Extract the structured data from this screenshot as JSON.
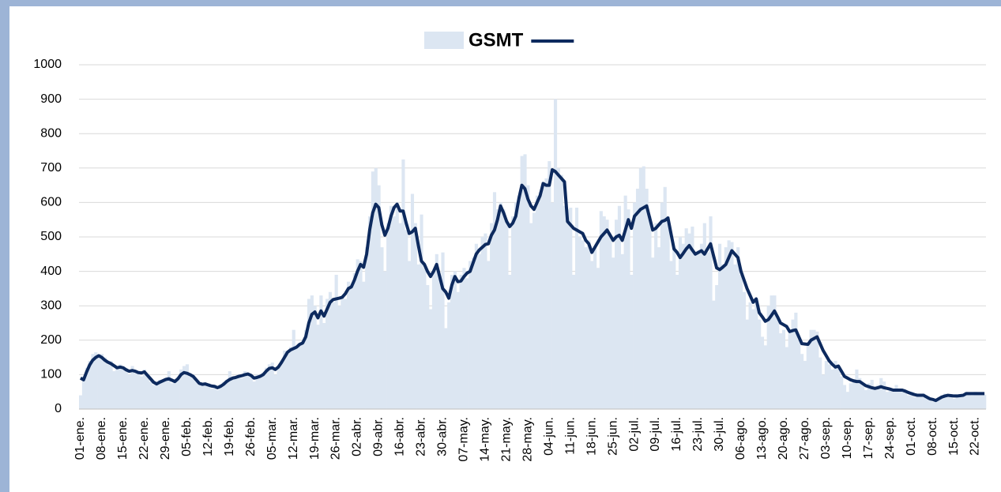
{
  "chart_data": {
    "type": "bar-line",
    "categories": [
      "01-ene.",
      null,
      null,
      null,
      null,
      null,
      null,
      "08-ene.",
      null,
      null,
      null,
      null,
      null,
      null,
      "15-ene.",
      null,
      null,
      null,
      null,
      null,
      null,
      "22-ene.",
      null,
      null,
      null,
      null,
      null,
      null,
      "29-ene.",
      null,
      null,
      null,
      null,
      null,
      null,
      "05-feb.",
      null,
      null,
      null,
      null,
      null,
      null,
      "12-feb.",
      null,
      null,
      null,
      null,
      null,
      null,
      "19-feb.",
      null,
      null,
      null,
      null,
      null,
      null,
      "26-feb.",
      null,
      null,
      null,
      null,
      null,
      null,
      "05-mar.",
      null,
      null,
      null,
      null,
      null,
      null,
      "12-mar.",
      null,
      null,
      null,
      null,
      null,
      null,
      "19-mar.",
      null,
      null,
      null,
      null,
      null,
      null,
      "26-mar.",
      null,
      null,
      null,
      null,
      null,
      null,
      "02-abr.",
      null,
      null,
      null,
      null,
      null,
      null,
      "09-abr.",
      null,
      null,
      null,
      null,
      null,
      null,
      "16-abr.",
      null,
      null,
      null,
      null,
      null,
      null,
      "23-abr.",
      null,
      null,
      null,
      null,
      null,
      null,
      "30-abr.",
      null,
      null,
      null,
      null,
      null,
      null,
      "07-may.",
      null,
      null,
      null,
      null,
      null,
      null,
      "14-may.",
      null,
      null,
      null,
      null,
      null,
      null,
      "21-may.",
      null,
      null,
      null,
      null,
      null,
      null,
      "28-may.",
      null,
      null,
      null,
      null,
      null,
      null,
      "04-jun.",
      null,
      null,
      null,
      null,
      null,
      null,
      "11-jun.",
      null,
      null,
      null,
      null,
      null,
      null,
      "18-jun.",
      null,
      null,
      null,
      null,
      null,
      null,
      "25-jun.",
      null,
      null,
      null,
      null,
      null,
      null,
      "02-jul.",
      null,
      null,
      null,
      null,
      null,
      null,
      "09-jul.",
      null,
      null,
      null,
      null,
      null,
      null,
      "16-jul.",
      null,
      null,
      null,
      null,
      null,
      null,
      "23-jul.",
      null,
      null,
      null,
      null,
      null,
      null,
      "30-jul.",
      null,
      null,
      null,
      null,
      null,
      null,
      "06-ago.",
      null,
      null,
      null,
      null,
      null,
      null,
      "13-ago.",
      null,
      null,
      null,
      null,
      null,
      null,
      "20-ago.",
      null,
      null,
      null,
      null,
      null,
      null,
      "27-ago.",
      null,
      null,
      null,
      null,
      null,
      null,
      "03-sep.",
      null,
      null,
      null,
      null,
      null,
      null,
      "10-sep.",
      null,
      null,
      null,
      null,
      null,
      null,
      "17-sep.",
      null,
      null,
      null,
      null,
      null,
      null,
      "24-sep.",
      null,
      null,
      null,
      null,
      null,
      null,
      "01-oct.",
      null,
      null,
      null,
      null,
      null,
      null,
      "08-oct.",
      null,
      null,
      null,
      null,
      null,
      null,
      "15-oct.",
      null,
      null,
      null,
      null,
      null,
      null,
      "22-oct.",
      null,
      null,
      null
    ],
    "series": [
      {
        "name": "GSMT",
        "kind": "bar",
        "color": "#dce6f2",
        "values": [
          40,
          95,
          120,
          140,
          160,
          165,
          150,
          160,
          150,
          130,
          140,
          110,
          125,
          130,
          115,
          120,
          100,
          125,
          105,
          110,
          95,
          115,
          100,
          80,
          70,
          75,
          85,
          80,
          90,
          110,
          75,
          85,
          90,
          115,
          125,
          130,
          95,
          100,
          80,
          70,
          75,
          68,
          75,
          60,
          70,
          55,
          72,
          78,
          85,
          110,
          85,
          95,
          100,
          90,
          110,
          105,
          95,
          80,
          100,
          90,
          105,
          120,
          130,
          135,
          100,
          125,
          140,
          170,
          160,
          180,
          230,
          175,
          190,
          200,
          230,
          320,
          330,
          300,
          245,
          330,
          250,
          320,
          340,
          310,
          390,
          300,
          330,
          320,
          370,
          360,
          395,
          435,
          430,
          370,
          470,
          560,
          690,
          700,
          650,
          470,
          400,
          540,
          590,
          560,
          600,
          540,
          725,
          520,
          430,
          625,
          540,
          420,
          565,
          410,
          360,
          290,
          400,
          450,
          380,
          455,
          235,
          310,
          390,
          400,
          340,
          390,
          410,
          380,
          430,
          440,
          480,
          450,
          500,
          510,
          430,
          540,
          630,
          580,
          600,
          580,
          550,
          390,
          560,
          600,
          620,
          735,
          740,
          650,
          540,
          570,
          620,
          630,
          660,
          670,
          720,
          600,
          900,
          700,
          680,
          590,
          580,
          585,
          390,
          585,
          500,
          490,
          470,
          490,
          430,
          470,
          410,
          575,
          560,
          550,
          500,
          440,
          550,
          590,
          450,
          620,
          580,
          390,
          600,
          640,
          700,
          705,
          640,
          560,
          440,
          540,
          470,
          600,
          645,
          560,
          430,
          470,
          390,
          500,
          480,
          525,
          510,
          530,
          450,
          460,
          480,
          540,
          455,
          560,
          315,
          360,
          480,
          420,
          470,
          490,
          485,
          420,
          470,
          390,
          340,
          260,
          310,
          290,
          320,
          260,
          210,
          185,
          300,
          330,
          330,
          270,
          220,
          230,
          180,
          220,
          260,
          280,
          200,
          160,
          140,
          190,
          230,
          230,
          225,
          150,
          100,
          140,
          130,
          115,
          140,
          120,
          95,
          70,
          50,
          75,
          80,
          115,
          90,
          70,
          55,
          75,
          85,
          65,
          70,
          90,
          80,
          50,
          60,
          50,
          70,
          60,
          55,
          50,
          40,
          50,
          35,
          45,
          40,
          45,
          30,
          25,
          22,
          30,
          28,
          40,
          45,
          35,
          40,
          30,
          42,
          40,
          45,
          50,
          48,
          40,
          50,
          45,
          48,
          42
        ]
      },
      {
        "kind": "line",
        "color": "#0d2a5e",
        "values": [
          90,
          85,
          108,
          128,
          142,
          150,
          155,
          150,
          142,
          136,
          132,
          126,
          120,
          122,
          120,
          114,
          110,
          112,
          110,
          106,
          105,
          108,
          98,
          88,
          78,
          73,
          78,
          82,
          86,
          88,
          84,
          80,
          88,
          100,
          106,
          104,
          100,
          95,
          85,
          75,
          72,
          73,
          70,
          67,
          66,
          62,
          66,
          72,
          80,
          86,
          90,
          92,
          95,
          97,
          100,
          102,
          98,
          90,
          92,
          95,
          100,
          110,
          118,
          120,
          115,
          122,
          135,
          150,
          165,
          172,
          176,
          180,
          188,
          192,
          210,
          250,
          275,
          282,
          265,
          285,
          270,
          290,
          310,
          318,
          320,
          322,
          325,
          335,
          350,
          355,
          375,
          400,
          420,
          412,
          450,
          520,
          570,
          595,
          585,
          535,
          505,
          525,
          560,
          585,
          595,
          575,
          575,
          540,
          510,
          515,
          525,
          475,
          430,
          420,
          400,
          385,
          400,
          420,
          385,
          350,
          340,
          322,
          360,
          385,
          370,
          372,
          385,
          395,
          400,
          425,
          450,
          462,
          470,
          478,
          480,
          505,
          520,
          550,
          590,
          570,
          545,
          530,
          540,
          560,
          610,
          650,
          640,
          610,
          590,
          580,
          600,
          620,
          655,
          650,
          650,
          695,
          690,
          680,
          670,
          660,
          545,
          535,
          525,
          520,
          515,
          510,
          490,
          480,
          455,
          470,
          485,
          500,
          510,
          520,
          505,
          490,
          500,
          505,
          490,
          520,
          550,
          525,
          560,
          570,
          580,
          585,
          590,
          555,
          520,
          525,
          535,
          545,
          548,
          555,
          510,
          465,
          455,
          440,
          452,
          465,
          475,
          462,
          450,
          455,
          460,
          450,
          465,
          480,
          445,
          410,
          405,
          412,
          420,
          440,
          460,
          450,
          440,
          400,
          375,
          350,
          330,
          310,
          320,
          280,
          268,
          255,
          260,
          272,
          285,
          268,
          250,
          245,
          240,
          225,
          228,
          230,
          210,
          190,
          189,
          188,
          200,
          205,
          210,
          190,
          170,
          155,
          140,
          130,
          122,
          125,
          110,
          95,
          90,
          85,
          82,
          80,
          80,
          74,
          68,
          65,
          62,
          60,
          62,
          65,
          62,
          60,
          58,
          55,
          55,
          55,
          55,
          52,
          48,
          45,
          42,
          40,
          40,
          40,
          35,
          30,
          28,
          25,
          30,
          35,
          38,
          40,
          39,
          38,
          38,
          39,
          40,
          45,
          45,
          45,
          45,
          45,
          45,
          45
        ]
      }
    ],
    "ylim": [
      0,
      1000
    ],
    "yticks": [
      0,
      100,
      200,
      300,
      400,
      500,
      600,
      700,
      800,
      900,
      1000
    ],
    "grid": true
  }
}
